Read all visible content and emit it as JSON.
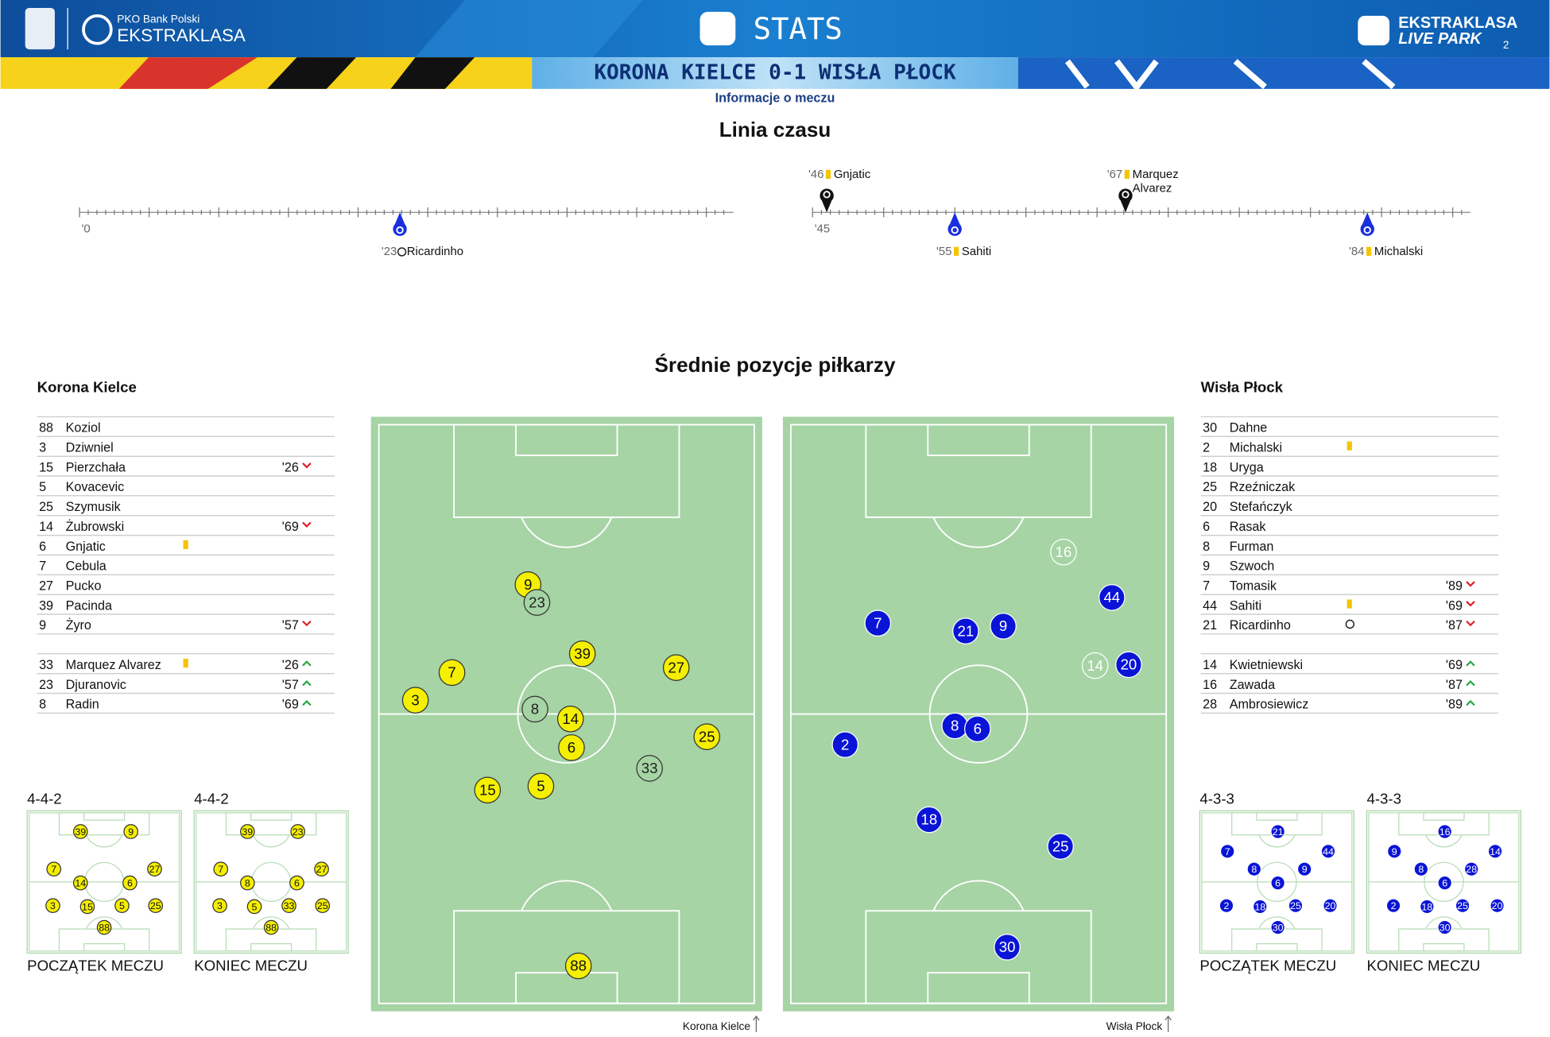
{
  "header": {
    "bank": "PKO Bank Polski",
    "league": "EKSTRAKLASA",
    "section": "STATS",
    "live_brand": "EKSTRAKLASA",
    "live_sub": "LIVE PARK",
    "page": "2"
  },
  "match": "KORONA KIELCE 0-1 WISŁA PŁOCK",
  "subtitle": "Informacje o meczu",
  "timeline": {
    "title": "Linia czasu",
    "halves": [
      "'0",
      "'45"
    ],
    "events": [
      {
        "minute": {
          "value": 23,
          "label": "'23"
        },
        "player": "Ricardinho",
        "team": "away",
        "kind": "goal"
      },
      {
        "minute": {
          "value": 46,
          "label": "'46"
        },
        "player": "Gnjatic",
        "team": "home",
        "kind": "yellow"
      },
      {
        "minute": {
          "value": 55,
          "label": "'55"
        },
        "player": "Sahiti",
        "team": "away",
        "kind": "yellow"
      },
      {
        "minute": {
          "value": 67,
          "label": "'67"
        },
        "player": "Marquez Alvarez",
        "team": "home",
        "kind": "yellow"
      },
      {
        "minute": {
          "value": 84,
          "label": "'84"
        },
        "player": "Michalski",
        "team": "away",
        "kind": "yellow"
      }
    ]
  },
  "positions_title": "Średnie pozycje piłkarzy",
  "teams": [
    {
      "name": "Korona Kielce",
      "color": "#f5ef00",
      "text_color": "#111",
      "starters": [
        {
          "number": "88",
          "name": "Koziol"
        },
        {
          "number": "3",
          "name": "Dziwniel"
        },
        {
          "number": "15",
          "name": "Pierzchała",
          "sub": "'26",
          "dir": "out"
        },
        {
          "number": "5",
          "name": "Kovacevic"
        },
        {
          "number": "25",
          "name": "Szymusik"
        },
        {
          "number": "14",
          "name": "Żubrowski",
          "sub": "'69",
          "dir": "out"
        },
        {
          "number": "6",
          "name": "Gnjatic",
          "card": "yellow"
        },
        {
          "number": "7",
          "name": "Cebula"
        },
        {
          "number": "27",
          "name": "Pucko"
        },
        {
          "number": "39",
          "name": "Pacinda"
        },
        {
          "number": "9",
          "name": "Żyro",
          "sub": "'57",
          "dir": "out"
        }
      ],
      "subs": [
        {
          "number": "33",
          "name": "Marquez Alvarez",
          "card": "yellow",
          "sub": "'26",
          "dir": "in"
        },
        {
          "number": "23",
          "name": "Djuranovic",
          "sub": "'57",
          "dir": "in"
        },
        {
          "number": "8",
          "name": "Radin",
          "sub": "'69",
          "dir": "in"
        }
      ],
      "pitch": [
        {
          "number": "9"
        },
        {
          "number": "23",
          "bench": true
        },
        {
          "number": "39"
        },
        {
          "number": "27"
        },
        {
          "number": "7"
        },
        {
          "number": "3"
        },
        {
          "number": "8",
          "bench": true
        },
        {
          "number": "14"
        },
        {
          "number": "6"
        },
        {
          "number": "25"
        },
        {
          "number": "33",
          "bench": true
        },
        {
          "number": "15"
        },
        {
          "number": "5"
        },
        {
          "number": "88"
        }
      ],
      "formations": [
        {
          "formation": "4-4-2",
          "label": "POCZĄTEK MECZU",
          "players": [
            "39",
            "9",
            "7",
            "14",
            "6",
            "27",
            "3",
            "15",
            "5",
            "25",
            "88"
          ]
        },
        {
          "formation": "4-4-2",
          "label": "KONIEC MECZU",
          "players": [
            "39",
            "23",
            "7",
            "8",
            "6",
            "27",
            "3",
            "5",
            "33",
            "25",
            "88"
          ]
        }
      ]
    },
    {
      "name": "Wisła Płock",
      "color": "#0a14d6",
      "text_color": "#fff",
      "starters": [
        {
          "number": "30",
          "name": "Dahne"
        },
        {
          "number": "2",
          "name": "Michalski",
          "card": "yellow"
        },
        {
          "number": "18",
          "name": "Uryga"
        },
        {
          "number": "25",
          "name": "Rzeźniczak"
        },
        {
          "number": "20",
          "name": "Stefańczyk"
        },
        {
          "number": "6",
          "name": "Rasak"
        },
        {
          "number": "8",
          "name": "Furman"
        },
        {
          "number": "9",
          "name": "Szwoch"
        },
        {
          "number": "7",
          "name": "Tomasik",
          "sub": "'89",
          "dir": "out"
        },
        {
          "number": "44",
          "name": "Sahiti",
          "card": "yellow",
          "sub": "'69",
          "dir": "out"
        },
        {
          "number": "21",
          "name": "Ricardinho",
          "goal": true,
          "sub": "'87",
          "dir": "out"
        }
      ],
      "subs": [
        {
          "number": "14",
          "name": "Kwietniewski",
          "sub": "'69",
          "dir": "in"
        },
        {
          "number": "16",
          "name": "Zawada",
          "sub": "'87",
          "dir": "in"
        },
        {
          "number": "28",
          "name": "Ambrosiewicz",
          "sub": "'89",
          "dir": "in"
        }
      ],
      "pitch": [
        {
          "number": "16",
          "bench": true
        },
        {
          "number": "44"
        },
        {
          "number": "7"
        },
        {
          "number": "21"
        },
        {
          "number": "9"
        },
        {
          "number": "14",
          "bench": true
        },
        {
          "number": "20"
        },
        {
          "number": "8"
        },
        {
          "number": "6"
        },
        {
          "number": "2"
        },
        {
          "number": "18"
        },
        {
          "number": "25"
        },
        {
          "number": "30"
        }
      ],
      "formations": [
        {
          "formation": "4-3-3",
          "label": "POCZĄTEK MECZU",
          "players": [
            "21",
            "7",
            "44",
            "8",
            "9",
            "6",
            "2",
            "18",
            "25",
            "20",
            "30"
          ]
        },
        {
          "formation": "4-3-3",
          "label": "KONIEC MECZU",
          "players": [
            "16",
            "9",
            "14",
            "8",
            "28",
            "6",
            "2",
            "18",
            "25",
            "20",
            "30"
          ]
        }
      ]
    }
  ]
}
